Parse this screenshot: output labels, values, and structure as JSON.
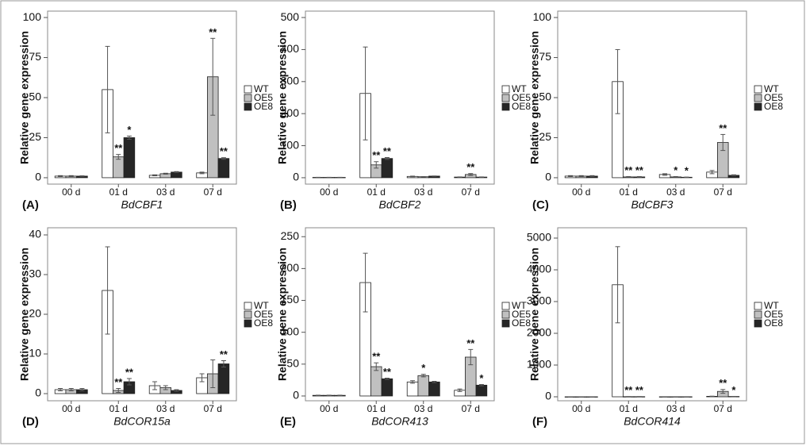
{
  "chart_data": [
    {
      "type": "bar",
      "label": "(A)",
      "x_label": "BdCBF1",
      "y_label": "Relative gene expression",
      "categories": [
        "00 d",
        "01 d",
        "03 d",
        "07 d"
      ],
      "ylim": [
        -4,
        104
      ],
      "yticks": [
        0,
        25,
        50,
        75,
        100
      ],
      "legend": "right",
      "series": [
        {
          "name": "WT",
          "color": "#ffffff",
          "values": [
            1,
            55,
            1.5,
            3
          ],
          "errors": [
            0.3,
            27,
            0.3,
            0.5
          ],
          "annotations": [
            null,
            null,
            null,
            null
          ]
        },
        {
          "name": "OE5",
          "color": "#c0c0c0",
          "values": [
            1,
            13,
            2.5,
            63
          ],
          "errors": [
            0.3,
            1.5,
            0.3,
            24
          ],
          "annotations": [
            null,
            "**",
            null,
            "**"
          ]
        },
        {
          "name": "OE8",
          "color": "#262626",
          "values": [
            1,
            25,
            3.5,
            12
          ],
          "errors": [
            0.2,
            1,
            0.3,
            0.5
          ],
          "annotations": [
            null,
            "*",
            null,
            "**"
          ]
        }
      ]
    },
    {
      "type": "bar",
      "label": "(B)",
      "x_label": "BdCBF2",
      "y_label": "Relative gene expression",
      "categories": [
        "00 d",
        "01 d",
        "03 d",
        "07 d"
      ],
      "ylim": [
        -20,
        520
      ],
      "yticks": [
        0,
        100,
        200,
        300,
        400,
        500
      ],
      "legend": "right",
      "series": [
        {
          "name": "WT",
          "color": "#ffffff",
          "values": [
            1,
            263,
            4,
            2
          ],
          "errors": [
            0.3,
            145,
            1,
            0.5
          ],
          "annotations": [
            null,
            null,
            null,
            null
          ]
        },
        {
          "name": "OE5",
          "color": "#c0c0c0",
          "values": [
            1,
            40,
            3,
            10
          ],
          "errors": [
            0.3,
            10,
            0.5,
            3
          ],
          "annotations": [
            null,
            "**",
            null,
            "**"
          ]
        },
        {
          "name": "OE8",
          "color": "#262626",
          "values": [
            1,
            60,
            5,
            2
          ],
          "errors": [
            0.3,
            3,
            0.5,
            0.5
          ],
          "annotations": [
            null,
            "**",
            null,
            null
          ]
        }
      ]
    },
    {
      "type": "bar",
      "label": "(C)",
      "x_label": "BdCBF3",
      "y_label": "Relative gene expression",
      "categories": [
        "00 d",
        "01 d",
        "03 d",
        "07 d"
      ],
      "ylim": [
        -4,
        104
      ],
      "yticks": [
        0,
        25,
        50,
        75,
        100
      ],
      "legend": "right",
      "series": [
        {
          "name": "WT",
          "color": "#ffffff",
          "values": [
            1,
            60,
            2,
            3.5
          ],
          "errors": [
            0.3,
            20,
            0.5,
            1
          ],
          "annotations": [
            null,
            null,
            null,
            null
          ]
        },
        {
          "name": "OE5",
          "color": "#c0c0c0",
          "values": [
            1,
            0.5,
            0.5,
            22
          ],
          "errors": [
            0.3,
            0.2,
            0.2,
            5
          ],
          "annotations": [
            null,
            "**",
            "*",
            "**"
          ]
        },
        {
          "name": "OE8",
          "color": "#262626",
          "values": [
            1,
            0.5,
            0.3,
            1.5
          ],
          "errors": [
            0.3,
            0.2,
            0.1,
            0.3
          ],
          "annotations": [
            null,
            "**",
            "*",
            null
          ]
        }
      ]
    },
    {
      "type": "bar",
      "label": "(D)",
      "x_label": "BdCOR15a",
      "y_label": "Relative gene expression",
      "categories": [
        "00 d",
        "01 d",
        "03 d",
        "07 d"
      ],
      "ylim": [
        -1.8,
        41.8
      ],
      "yticks": [
        0,
        10,
        20,
        30,
        40
      ],
      "legend": "right",
      "series": [
        {
          "name": "WT",
          "color": "#ffffff",
          "values": [
            1,
            26,
            2,
            4
          ],
          "errors": [
            0.3,
            11,
            1,
            1
          ],
          "annotations": [
            null,
            null,
            null,
            null
          ]
        },
        {
          "name": "OE5",
          "color": "#c0c0c0",
          "values": [
            1,
            0.8,
            1.5,
            5
          ],
          "errors": [
            0.3,
            0.5,
            0.5,
            3.5
          ],
          "annotations": [
            null,
            "**",
            null,
            null
          ]
        },
        {
          "name": "OE8",
          "color": "#262626",
          "values": [
            1,
            3,
            0.8,
            7.5
          ],
          "errors": [
            0.3,
            0.8,
            0.2,
            0.8
          ],
          "annotations": [
            null,
            "**",
            null,
            "**"
          ]
        }
      ]
    },
    {
      "type": "bar",
      "label": "(E)",
      "x_label": "BdCOR413",
      "y_label": "Relative gene expression",
      "categories": [
        "00 d",
        "01 d",
        "03 d",
        "07 d"
      ],
      "ylim": [
        -7.5,
        264
      ],
      "yticks": [
        0,
        50,
        100,
        150,
        200,
        250
      ],
      "legend": "right",
      "series": [
        {
          "name": "WT",
          "color": "#ffffff",
          "values": [
            1,
            178,
            22,
            9
          ],
          "errors": [
            0.3,
            46,
            2,
            2
          ],
          "annotations": [
            null,
            null,
            null,
            null
          ]
        },
        {
          "name": "OE5",
          "color": "#c0c0c0",
          "values": [
            1,
            46,
            32,
            61
          ],
          "errors": [
            0.3,
            6,
            2,
            12
          ],
          "annotations": [
            null,
            "**",
            "*",
            "**"
          ]
        },
        {
          "name": "OE8",
          "color": "#262626",
          "values": [
            1,
            27,
            22,
            17
          ],
          "errors": [
            0.3,
            1,
            1,
            1
          ],
          "annotations": [
            null,
            "**",
            null,
            "*"
          ]
        }
      ]
    },
    {
      "type": "bar",
      "label": "(F)",
      "x_label": "BdCOR414",
      "y_label": "Relative gene expression",
      "categories": [
        "00 d",
        "01 d",
        "03 d",
        "07 d"
      ],
      "ylim": [
        -125,
        5325
      ],
      "yticks": [
        0,
        1000,
        2000,
        3000,
        4000,
        5000
      ],
      "legend": "right",
      "series": [
        {
          "name": "WT",
          "color": "#ffffff",
          "values": [
            1,
            3530,
            2,
            15
          ],
          "errors": [
            0.3,
            1200,
            0.5,
            5
          ],
          "annotations": [
            null,
            null,
            null,
            null
          ]
        },
        {
          "name": "OE5",
          "color": "#c0c0c0",
          "values": [
            1,
            5,
            2,
            170
          ],
          "errors": [
            0.3,
            2,
            0.5,
            60
          ],
          "annotations": [
            null,
            "**",
            null,
            "**"
          ]
        },
        {
          "name": "OE8",
          "color": "#262626",
          "values": [
            1,
            5,
            2,
            10
          ],
          "errors": [
            0.3,
            2,
            0.5,
            3
          ],
          "annotations": [
            null,
            "**",
            null,
            "*"
          ]
        }
      ]
    }
  ]
}
